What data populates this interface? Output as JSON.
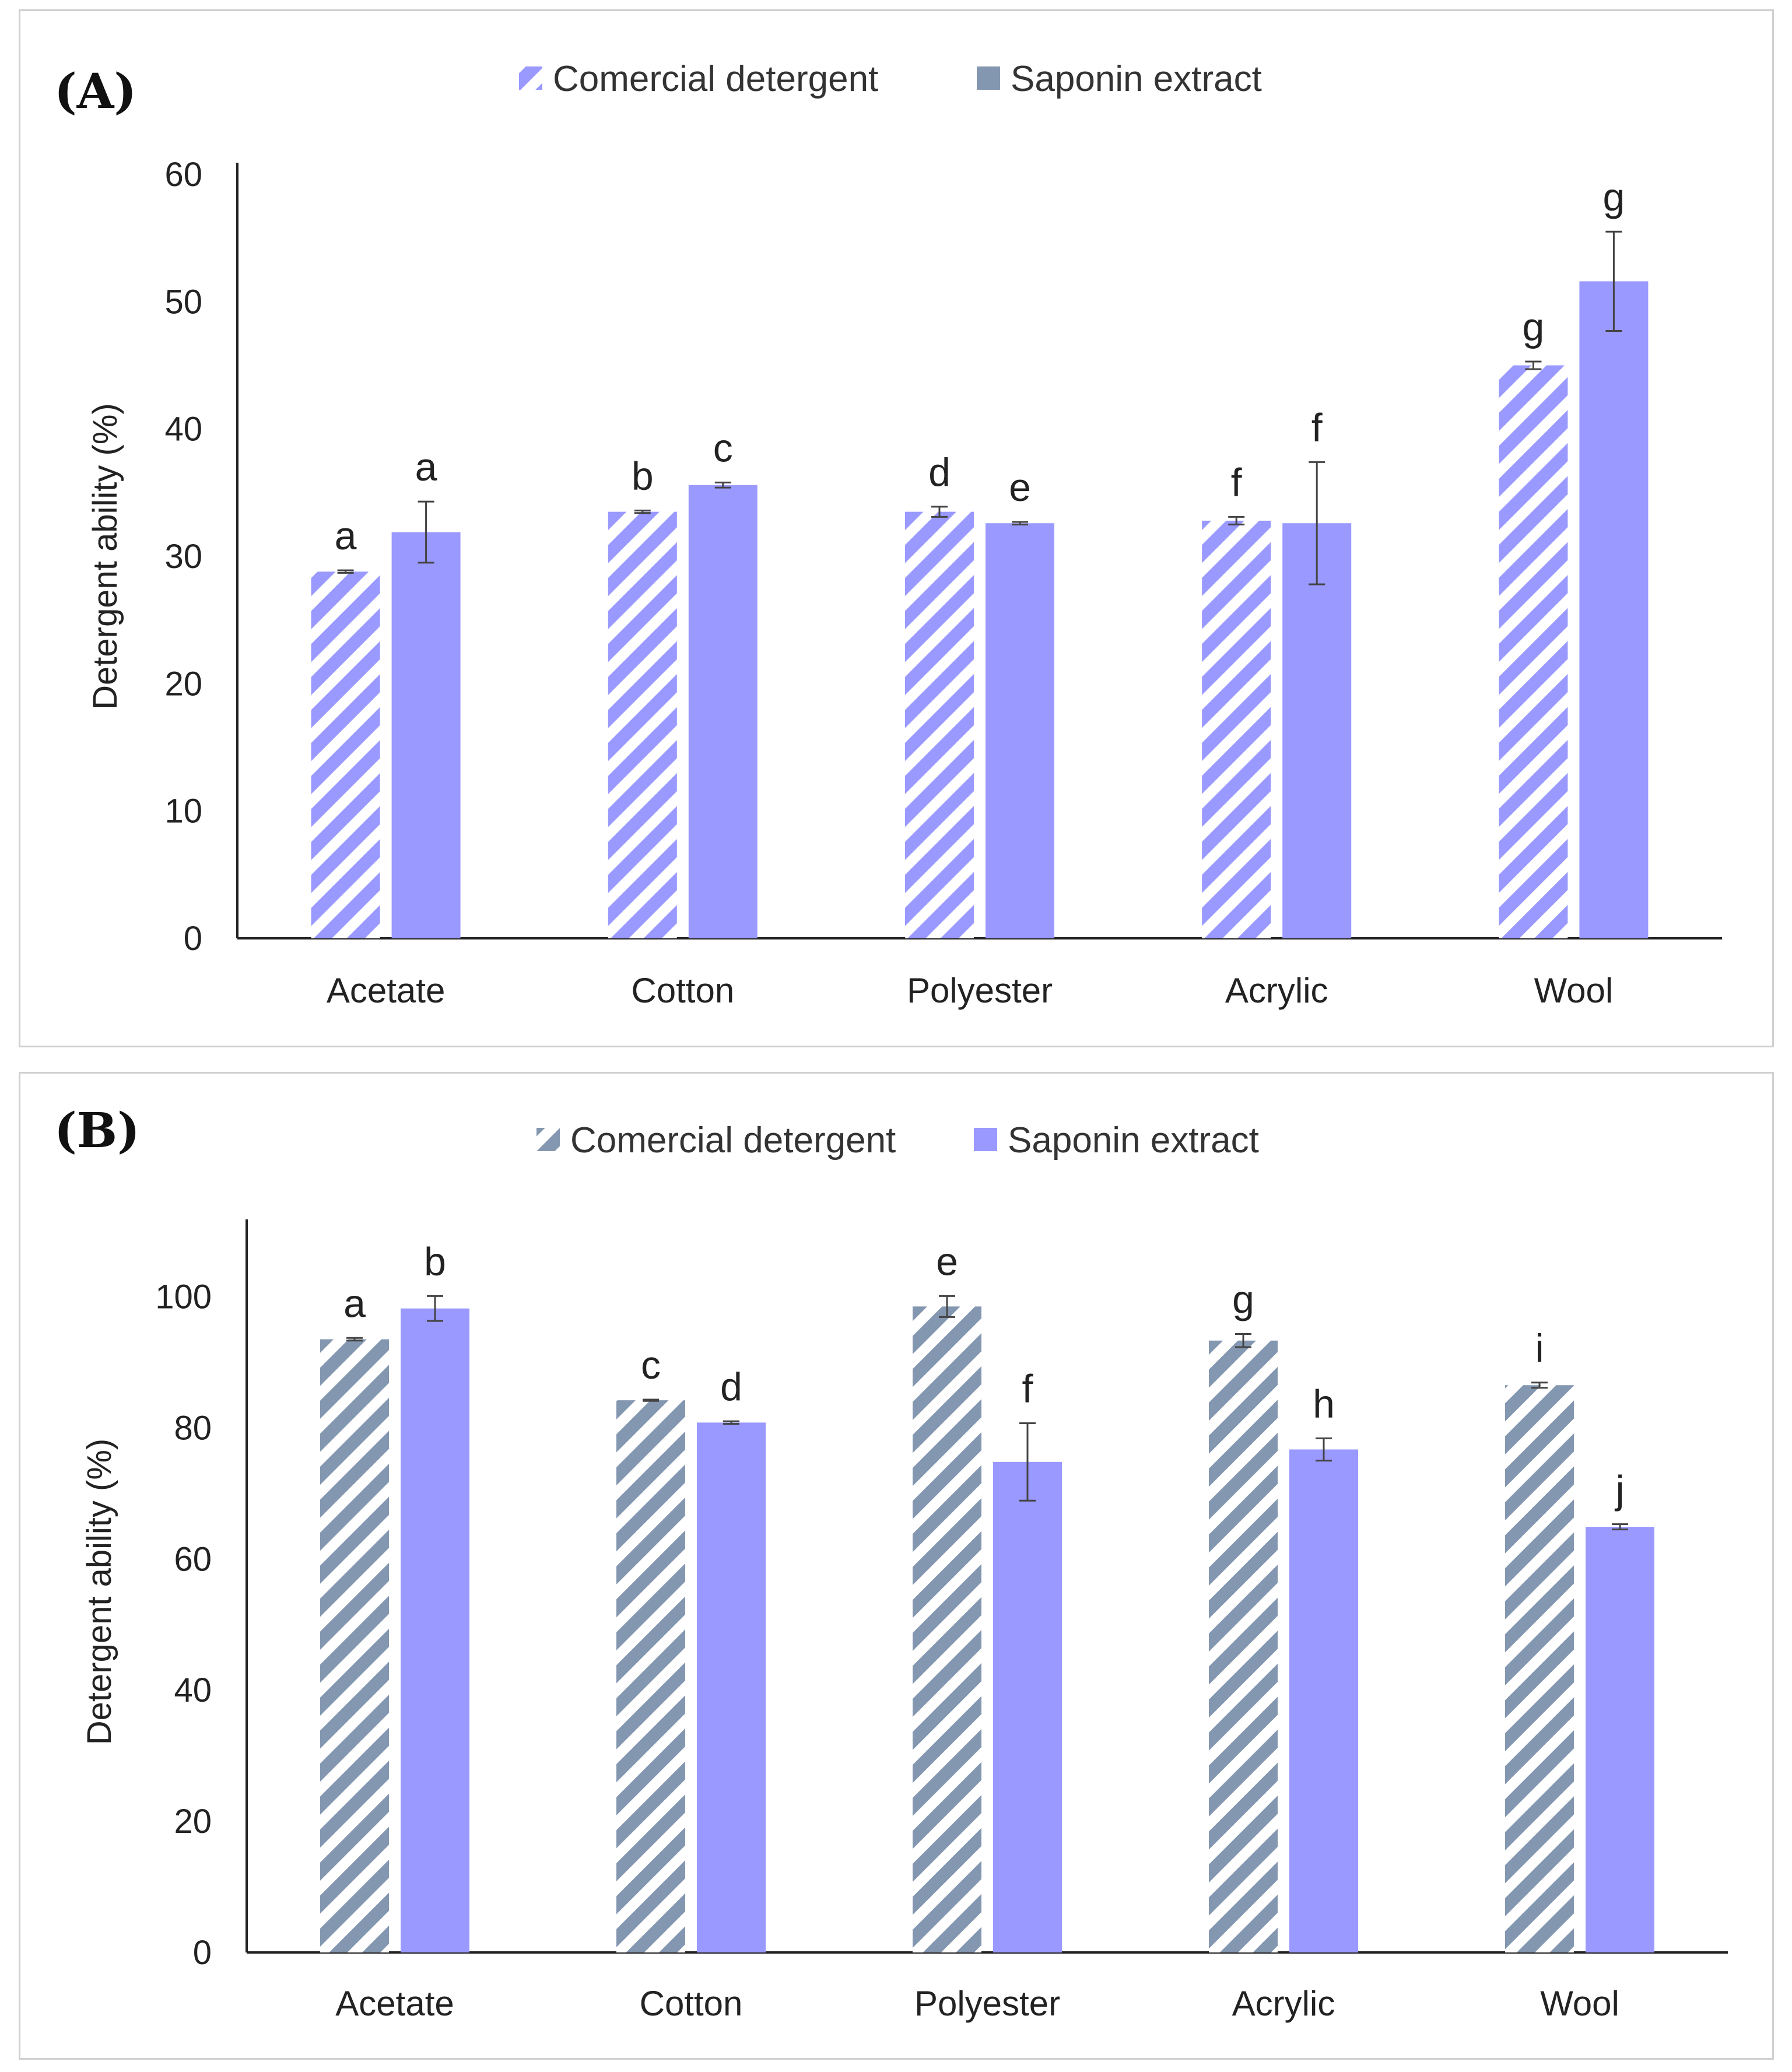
{
  "chart_data": [
    {
      "type": "bar",
      "panel_label": "(A)",
      "categories": [
        "Acetate",
        "Cotton",
        "Polyester",
        "Acrylic",
        "Wool"
      ],
      "ylabel": "Detergent ability (%)",
      "xlabel": "",
      "ylim": [
        0,
        60
      ],
      "yticks": [
        0,
        10,
        20,
        30,
        40,
        50,
        60
      ],
      "legend_placement": "top-center",
      "grid": false,
      "series": [
        {
          "name": "Comercial detergent",
          "pattern": "hatched",
          "legend_pattern": "hatched",
          "color": "#9999ff",
          "values": [
            28.8,
            33.5,
            33.5,
            32.8,
            45
          ],
          "errors": [
            0.1,
            0.1,
            0.4,
            0.3,
            0.3
          ],
          "letters": [
            "a",
            "b",
            "d",
            "f",
            "g"
          ]
        },
        {
          "name": "Saponin extract",
          "pattern": "solid",
          "legend_pattern": "solid",
          "legend_color": "#8497b0",
          "color": "#9999ff",
          "values": [
            31.9,
            35.6,
            32.6,
            32.6,
            51.6
          ],
          "errors": [
            2.4,
            0.2,
            0.1,
            4.8,
            3.9
          ],
          "letters": [
            "a",
            "c",
            "e",
            "f",
            "g"
          ]
        }
      ]
    },
    {
      "type": "bar",
      "panel_label": "(B)",
      "categories": [
        "Acetate",
        "Cotton",
        "Polyester",
        "Acrylic",
        "Wool"
      ],
      "ylabel": "Detergent ability (%)",
      "xlabel": "",
      "ylim": [
        0,
        110
      ],
      "yticks": [
        0,
        20,
        40,
        60,
        80,
        100
      ],
      "legend_placement": "top-center",
      "grid": false,
      "series": [
        {
          "name": "Comercial detergent",
          "pattern": "hatched",
          "legend_pattern": "hatched",
          "color": "#8497b0",
          "values": [
            93.5,
            84.2,
            98.5,
            93.3,
            86.5
          ],
          "errors": [
            0.2,
            0.1,
            1.6,
            1.0,
            0.4
          ],
          "letters": [
            "a",
            "c",
            "e",
            "g",
            "i"
          ]
        },
        {
          "name": "Saponin extract",
          "pattern": "solid",
          "legend_pattern": "solid",
          "legend_color": "#9999ff",
          "color": "#9999ff",
          "values": [
            98.2,
            80.8,
            74.8,
            76.7,
            64.9
          ],
          "errors": [
            1.9,
            0.2,
            5.9,
            1.7,
            0.4
          ],
          "letters": [
            "b",
            "d",
            "f",
            "h",
            "j"
          ]
        }
      ]
    }
  ]
}
